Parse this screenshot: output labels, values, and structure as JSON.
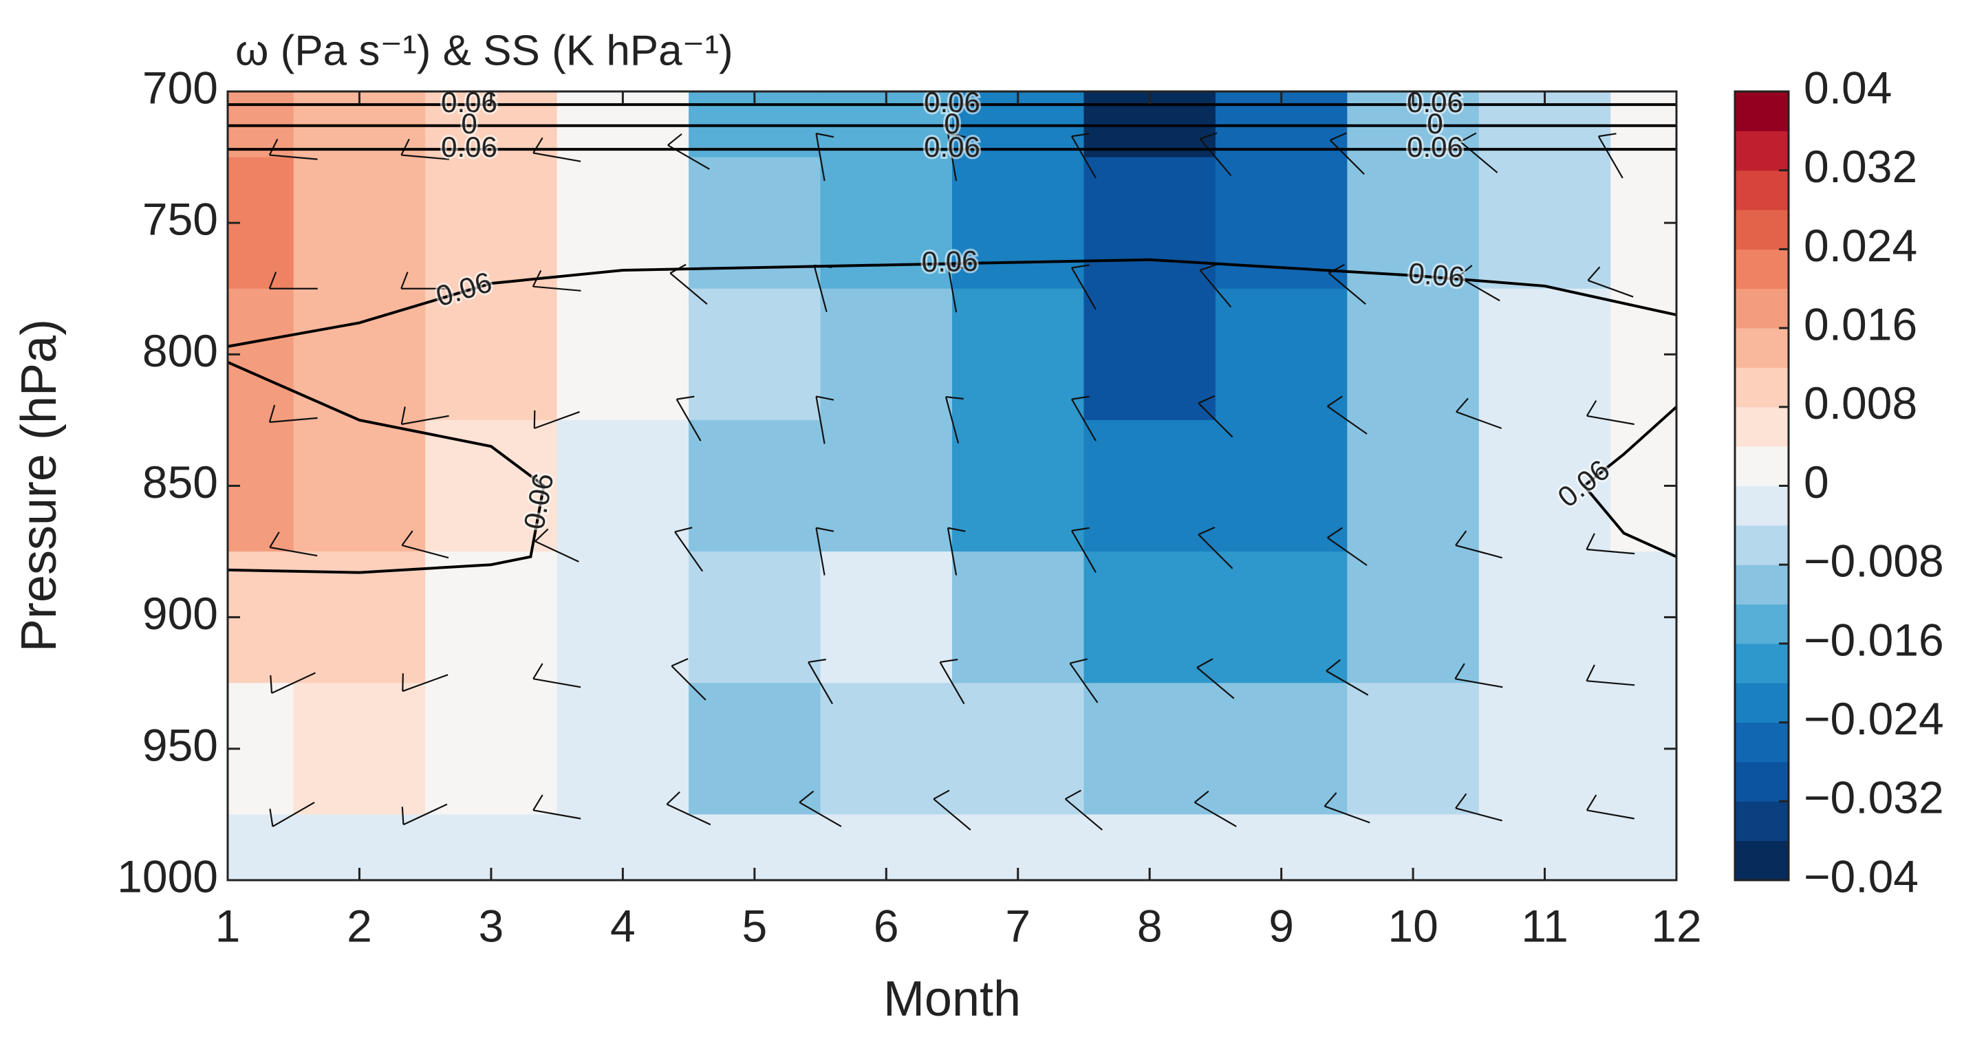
{
  "chart_data": {
    "type": "contourf",
    "title": "ω (Pa s⁻¹) & SS (K hPa⁻¹)",
    "x_label": "Month",
    "y_label": "Pressure (hPa)",
    "x": [
      1,
      2,
      3,
      4,
      5,
      6,
      7,
      8,
      9,
      10,
      11,
      12
    ],
    "y": [
      700,
      750,
      800,
      850,
      900,
      950,
      1000
    ],
    "values": [
      [
        0.018,
        0.014,
        0.01,
        0.004,
        -0.014,
        -0.016,
        -0.024,
        -0.038,
        -0.026,
        -0.01,
        -0.006,
        0.002
      ],
      [
        0.022,
        0.014,
        0.008,
        0.002,
        -0.01,
        -0.016,
        -0.022,
        -0.032,
        -0.026,
        -0.012,
        -0.006,
        0.002
      ],
      [
        0.018,
        0.014,
        0.008,
        0.001,
        -0.008,
        -0.012,
        -0.02,
        -0.03,
        -0.022,
        -0.01,
        -0.004,
        0.004
      ],
      [
        0.018,
        0.014,
        0.006,
        -0.002,
        -0.01,
        -0.01,
        -0.018,
        -0.024,
        -0.024,
        -0.012,
        -0.004,
        0.0
      ],
      [
        0.01,
        0.01,
        0.004,
        -0.002,
        -0.006,
        -0.002,
        -0.01,
        -0.018,
        -0.018,
        -0.01,
        -0.004,
        -0.002
      ],
      [
        0.002,
        0.006,
        0.002,
        -0.002,
        -0.01,
        -0.008,
        -0.008,
        -0.01,
        -0.012,
        -0.006,
        -0.004,
        -0.002
      ],
      [
        -0.002,
        -0.002,
        -0.002,
        -0.002,
        -0.004,
        -0.002,
        -0.004,
        -0.004,
        -0.004,
        -0.004,
        -0.002,
        -0.002
      ]
    ],
    "xlim": [
      1,
      12
    ],
    "ylim": [
      1000,
      700
    ],
    "xticks": [
      1,
      2,
      3,
      4,
      5,
      6,
      7,
      8,
      9,
      10,
      11,
      12
    ],
    "yticks": [
      700,
      750,
      800,
      850,
      900,
      950,
      1000
    ],
    "clim": [
      -0.04,
      0.04
    ],
    "colors": [
      "#062c5c",
      "#0a3f80",
      "#0d54a0",
      "#1167b2",
      "#1a80c0",
      "#2e97cb",
      "#57aed6",
      "#88c4e2",
      "#b6d8ec",
      "#deebf4",
      "#f7f5f3",
      "#fde3d6",
      "#fcd0bb",
      "#f9b89c",
      "#f49d7e",
      "#ee8262",
      "#e3634a",
      "#d6443b",
      "#c01f2f",
      "#94001f"
    ],
    "cticks": [
      {
        "value": -0.04,
        "label": "−0.04"
      },
      {
        "value": -0.032,
        "label": "−0.032"
      },
      {
        "value": -0.024,
        "label": "−0.024"
      },
      {
        "value": -0.016,
        "label": "−0.016"
      },
      {
        "value": -0.008,
        "label": "−0.008"
      },
      0,
      0.008,
      0.016,
      0.024,
      0.032,
      0.04
    ],
    "contours": [
      {
        "level": 0.06,
        "x": [
          1,
          12
        ],
        "y": [
          705,
          705
        ]
      },
      {
        "level": 0,
        "x": [
          1,
          12
        ],
        "y": [
          713,
          713
        ]
      },
      {
        "level": 0.06,
        "x": [
          1,
          12
        ],
        "y": [
          722,
          722
        ]
      },
      {
        "level": 0.06,
        "x": [
          1,
          2,
          3,
          4,
          6,
          8,
          10,
          11,
          12
        ],
        "y": [
          797,
          788,
          773,
          768,
          766,
          764,
          770,
          774,
          785
        ]
      },
      {
        "level": 0.06,
        "x": [
          1,
          2,
          3,
          3.4,
          3.3,
          3,
          2,
          1
        ],
        "y": [
          803,
          825,
          835,
          850,
          877,
          880,
          883,
          882
        ]
      },
      {
        "level": 0.06,
        "x": [
          12,
          11.6,
          11.3,
          11.6,
          12
        ],
        "y": [
          820,
          838,
          850,
          868,
          877
        ]
      }
    ],
    "barbs": {
      "x": [
        1.5,
        2.5,
        3.5,
        4.5,
        5.5,
        6.5,
        7.5,
        8.5,
        9.5,
        10.5,
        11.5
      ],
      "y": [
        725,
        775,
        825,
        875,
        925,
        975
      ],
      "angle": [
        [
          5,
          5,
          10,
          30,
          80,
          80,
          60,
          50,
          45,
          40,
          60
        ],
        [
          0,
          0,
          5,
          40,
          75,
          80,
          60,
          50,
          40,
          30,
          20
        ],
        [
          -5,
          -10,
          -20,
          60,
          80,
          75,
          60,
          45,
          35,
          20,
          10
        ],
        [
          10,
          15,
          25,
          55,
          80,
          80,
          60,
          45,
          35,
          15,
          5
        ],
        [
          -25,
          -20,
          10,
          45,
          60,
          60,
          55,
          40,
          30,
          10,
          5
        ],
        [
          -30,
          -25,
          10,
          25,
          30,
          40,
          40,
          30,
          20,
          15,
          10
        ]
      ]
    }
  }
}
